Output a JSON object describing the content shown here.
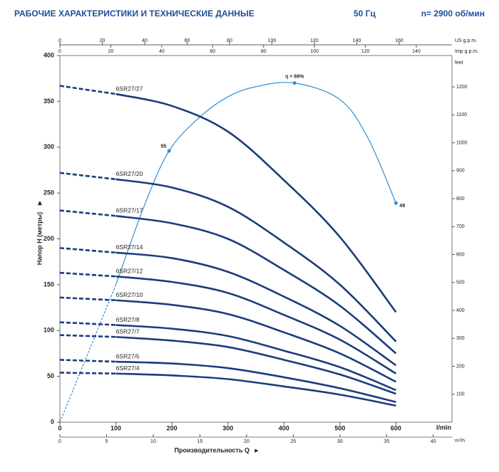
{
  "chart_data": {
    "type": "line",
    "title": "РАБОЧИЕ ХАРАКТЕРИСТИКИ И ТЕХНИЧЕСКИЕ ДАННЫЕ",
    "subtitle_left": "50 Гц",
    "subtitle_right": "n= 2900 об/мин",
    "ylabel": "Напор H (метры)",
    "xlabel": "Производительность Q",
    "xunit": "l/min",
    "xlim": [
      0,
      700
    ],
    "xticks": [
      0,
      100,
      200,
      300,
      400,
      500,
      600
    ],
    "ylim": [
      0,
      400
    ],
    "yticks": [
      0,
      50,
      100,
      150,
      200,
      250,
      300,
      350,
      400
    ],
    "y2label": "feet",
    "y2lim": [
      0,
      1312.3
    ],
    "y2ticks": [
      100,
      200,
      300,
      400,
      500,
      600,
      700,
      800,
      900,
      1000,
      1100,
      1200
    ],
    "us_gpm_axis": {
      "label": "US g.p.m.",
      "lim": [
        0,
        184.9
      ],
      "ticks": [
        0,
        20,
        40,
        60,
        80,
        100,
        120,
        140,
        160
      ]
    },
    "imp_gpm_axis": {
      "label": "Imp g.p.m.",
      "lim": [
        0,
        154.0
      ],
      "ticks": [
        0,
        20,
        40,
        60,
        80,
        100,
        120,
        140
      ]
    },
    "m3h_axis": {
      "label": "m³/h",
      "lim": [
        0,
        42.0
      ],
      "ticks": [
        0,
        5,
        10,
        15,
        20,
        25,
        30,
        35,
        40
      ]
    },
    "x": [
      0,
      100,
      200,
      300,
      400,
      500,
      600
    ],
    "series": [
      {
        "name": "6SR27/27",
        "color": "#1b3c7c",
        "values": [
          367,
          358,
          345,
          317,
          264,
          202,
          120
        ]
      },
      {
        "name": "6SR27/20",
        "color": "#1b3c7c",
        "values": [
          272,
          265,
          256,
          235,
          196,
          150,
          88
        ]
      },
      {
        "name": "6SR27/17",
        "color": "#1b3c7c",
        "values": [
          231,
          225,
          217,
          200,
          166,
          127,
          75
        ]
      },
      {
        "name": "6SR27/14",
        "color": "#1b3c7c",
        "values": [
          190,
          185,
          179,
          164,
          137,
          105,
          62
        ]
      },
      {
        "name": "6SR27/12",
        "color": "#1b3c7c",
        "values": [
          163,
          159,
          153,
          141,
          117,
          90,
          53
        ]
      },
      {
        "name": "6SR27/10",
        "color": "#1b3c7c",
        "values": [
          136,
          133,
          128,
          118,
          98,
          75,
          44
        ]
      },
      {
        "name": "6SR27/8",
        "color": "#1b3c7c",
        "values": [
          109,
          106,
          102,
          94,
          78,
          60,
          35
        ]
      },
      {
        "name": "6SR27/7",
        "color": "#1b3c7c",
        "values": [
          95,
          93,
          89,
          82,
          68,
          52,
          31
        ]
      },
      {
        "name": "6SR27/5",
        "color": "#1b3c7c",
        "values": [
          68,
          66,
          64,
          59,
          49,
          37,
          22
        ]
      },
      {
        "name": "6SR27/4",
        "color": "#1b3c7c",
        "values": [
          54,
          53,
          51,
          47,
          39,
          30,
          18
        ]
      }
    ],
    "efficiency": {
      "color": "#2d8fd5",
      "x": [
        0,
        50,
        100,
        150,
        195,
        250,
        300,
        350,
        419,
        500,
        550,
        600
      ],
      "values": [
        0,
        75,
        150,
        235,
        296,
        333,
        355,
        366,
        370,
        352,
        310,
        239
      ],
      "annotations": [
        {
          "x": 195,
          "y": 296,
          "label": "55"
        },
        {
          "x": 419,
          "y": 370,
          "label": "η = 69%"
        },
        {
          "x": 600,
          "y": 239,
          "label": "49"
        }
      ]
    }
  }
}
